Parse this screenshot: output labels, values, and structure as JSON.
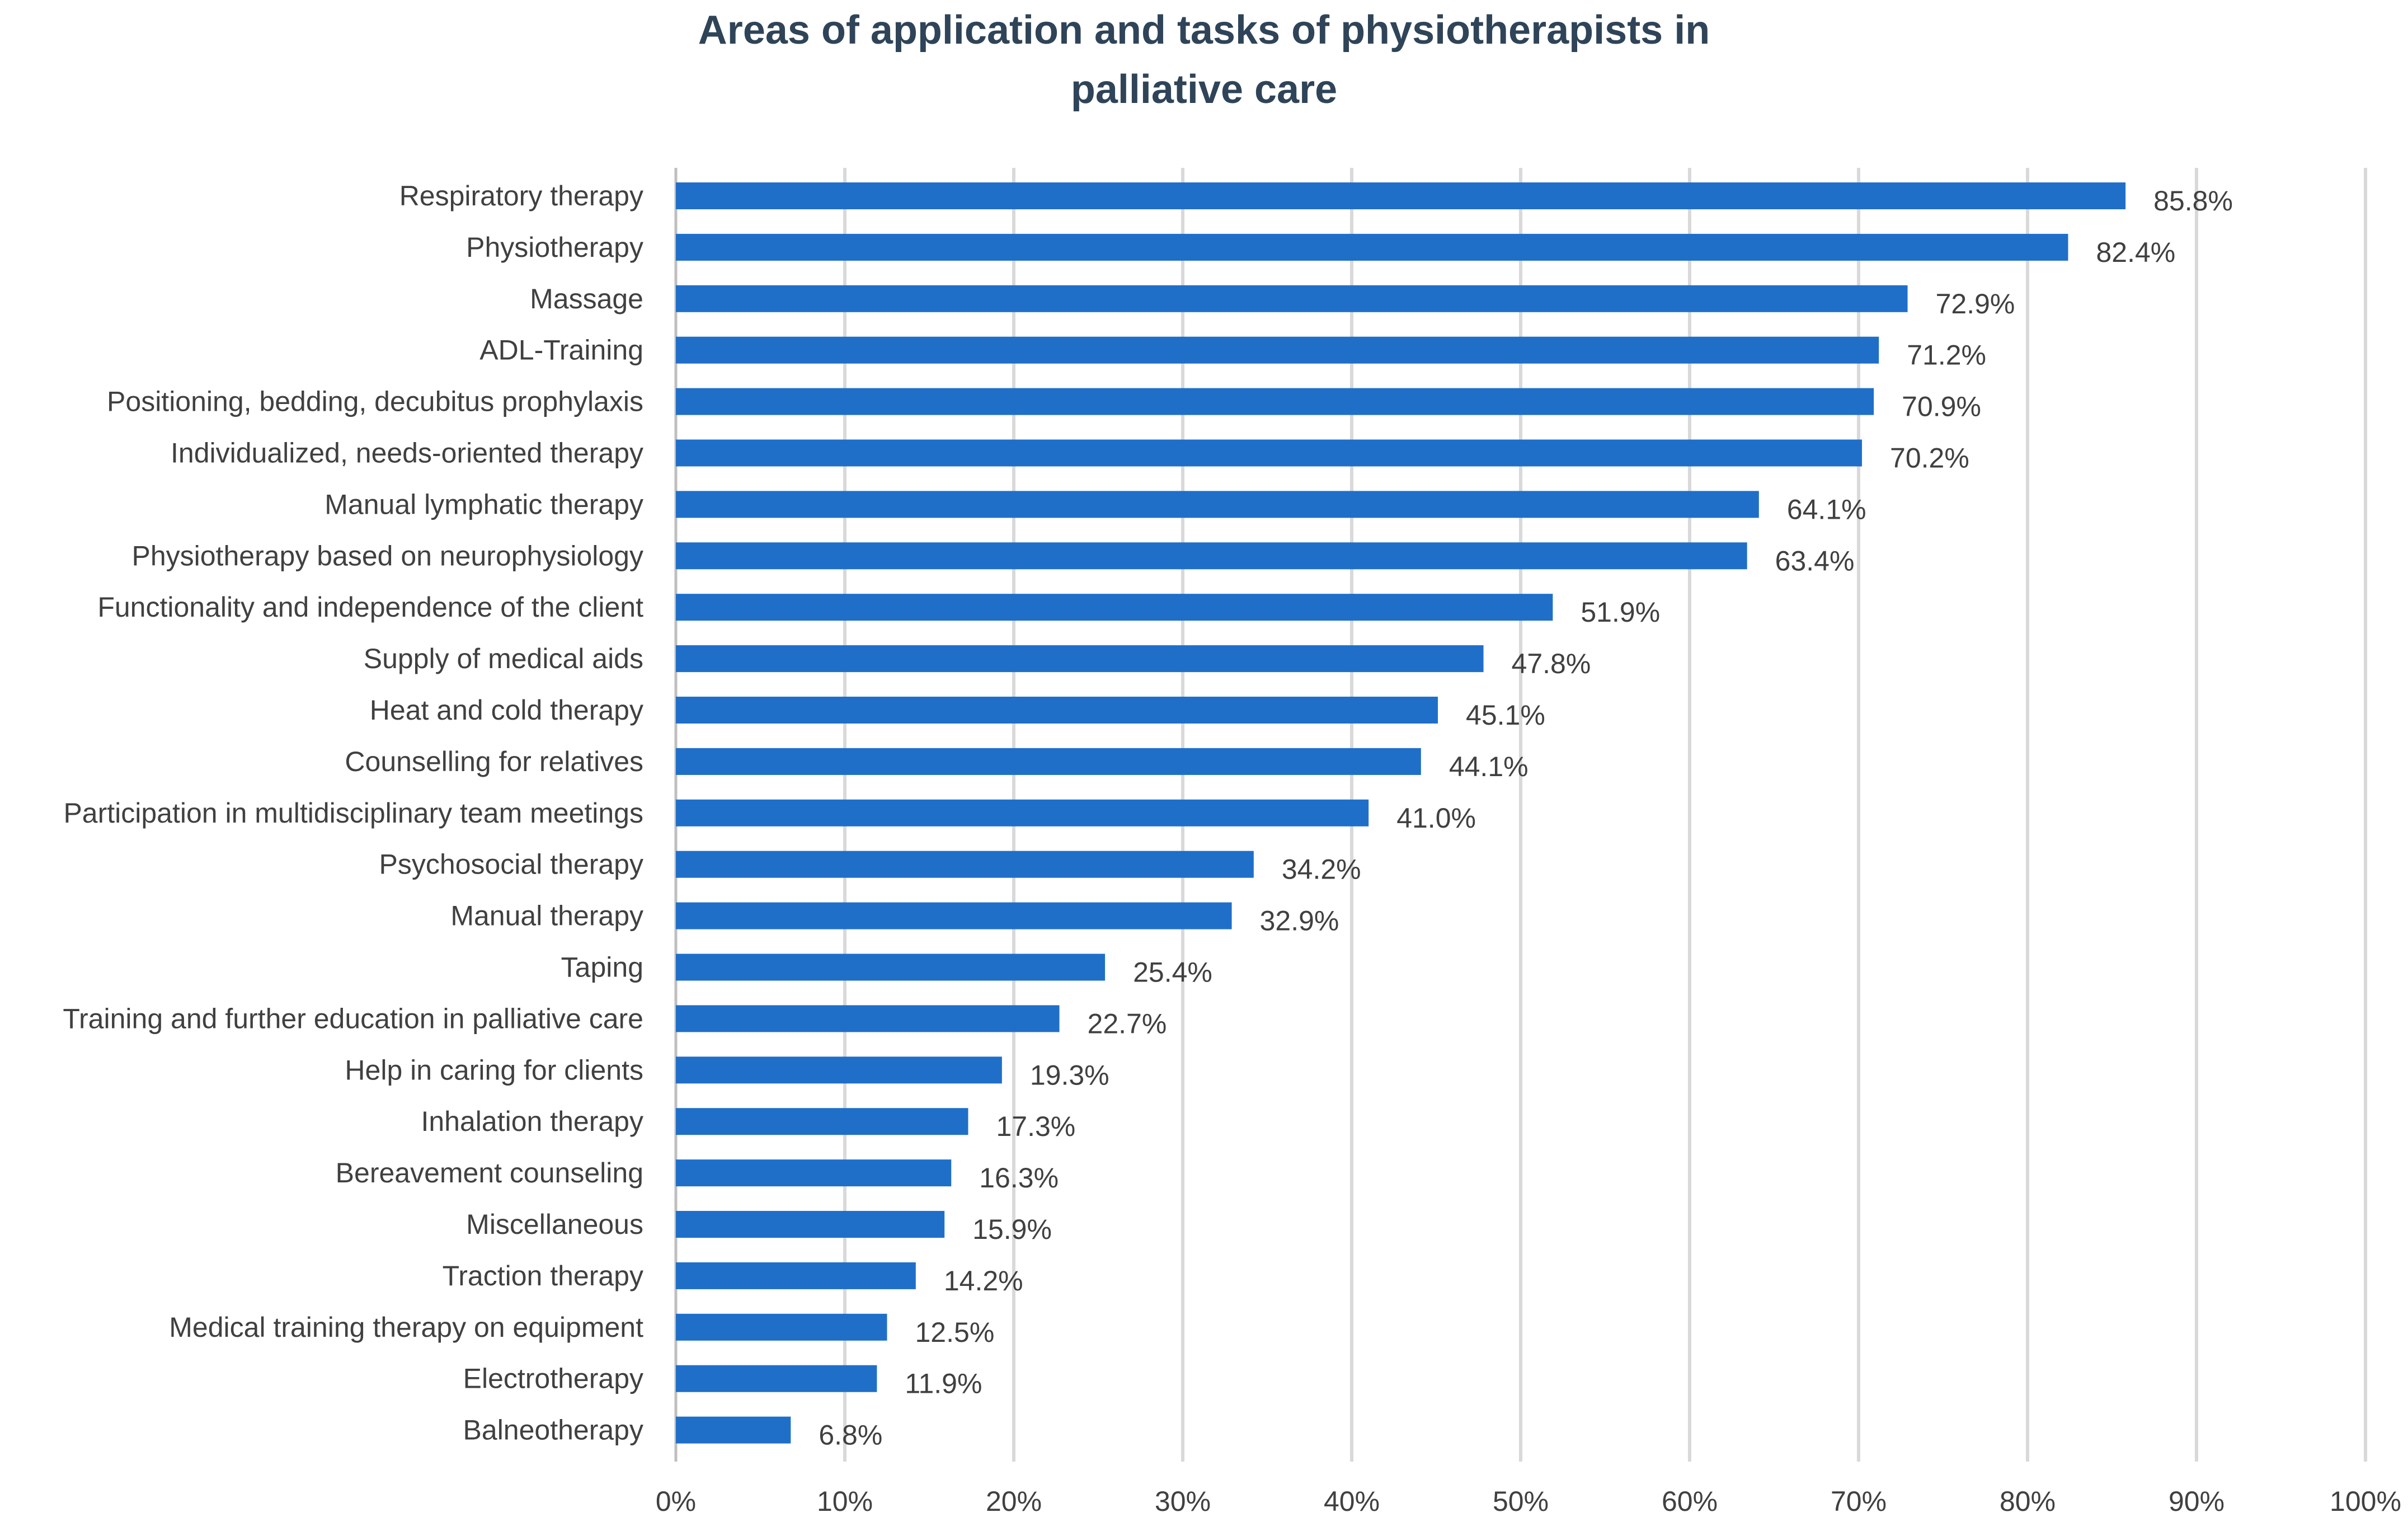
{
  "title_lines": [
    "Areas of application and tasks of physiotherapists in",
    "palliative care"
  ],
  "chart_data": {
    "type": "bar",
    "orientation": "horizontal",
    "title": "Areas of application and tasks of physiotherapists in palliative care",
    "xlabel": "",
    "ylabel": "",
    "xlim": [
      0,
      100
    ],
    "x_ticks": [
      "0%",
      "10%",
      "20%",
      "30%",
      "40%",
      "50%",
      "60%",
      "70%",
      "80%",
      "90%",
      "100%"
    ],
    "grid": "vertical",
    "legend": "none",
    "bar_color": "#1f6fc9",
    "grid_color": "#d9d9d9",
    "categories": [
      "Respiratory therapy",
      "Physiotherapy",
      "Massage",
      "ADL-Training",
      "Positioning, bedding, decubitus prophylaxis",
      "Individualized, needs-oriented therapy",
      "Manual lymphatic therapy",
      "Physiotherapy based on neurophysiology",
      "Functionality and independence of the client",
      "Supply of medical aids",
      "Heat and cold therapy",
      "Counselling for relatives",
      "Participation in multidisciplinary team meetings",
      "Psychosocial therapy",
      "Manual therapy",
      "Taping",
      "Training and further education in palliative care",
      "Help in caring for clients",
      "Inhalation therapy",
      "Bereavement counseling",
      "Miscellaneous",
      "Traction therapy",
      "Medical training therapy on equipment",
      "Electrotherapy",
      "Balneotherapy"
    ],
    "values": [
      85.8,
      82.4,
      72.9,
      71.2,
      70.9,
      70.2,
      64.1,
      63.4,
      51.9,
      47.8,
      45.1,
      44.1,
      41.0,
      34.2,
      32.9,
      25.4,
      22.7,
      19.3,
      17.3,
      16.3,
      15.9,
      14.2,
      12.5,
      11.9,
      6.8
    ],
    "value_labels": [
      "85.8%",
      "82.4%",
      "72.9%",
      "71.2%",
      "70.9%",
      "70.2%",
      "64.1%",
      "63.4%",
      "51.9%",
      "47.8%",
      "45.1%",
      "44.1%",
      "41.0%",
      "34.2%",
      "32.9%",
      "25.4%",
      "22.7%",
      "19.3%",
      "17.3%",
      "16.3%",
      "15.9%",
      "14.2%",
      "12.5%",
      "11.9%",
      "6.8%"
    ]
  }
}
